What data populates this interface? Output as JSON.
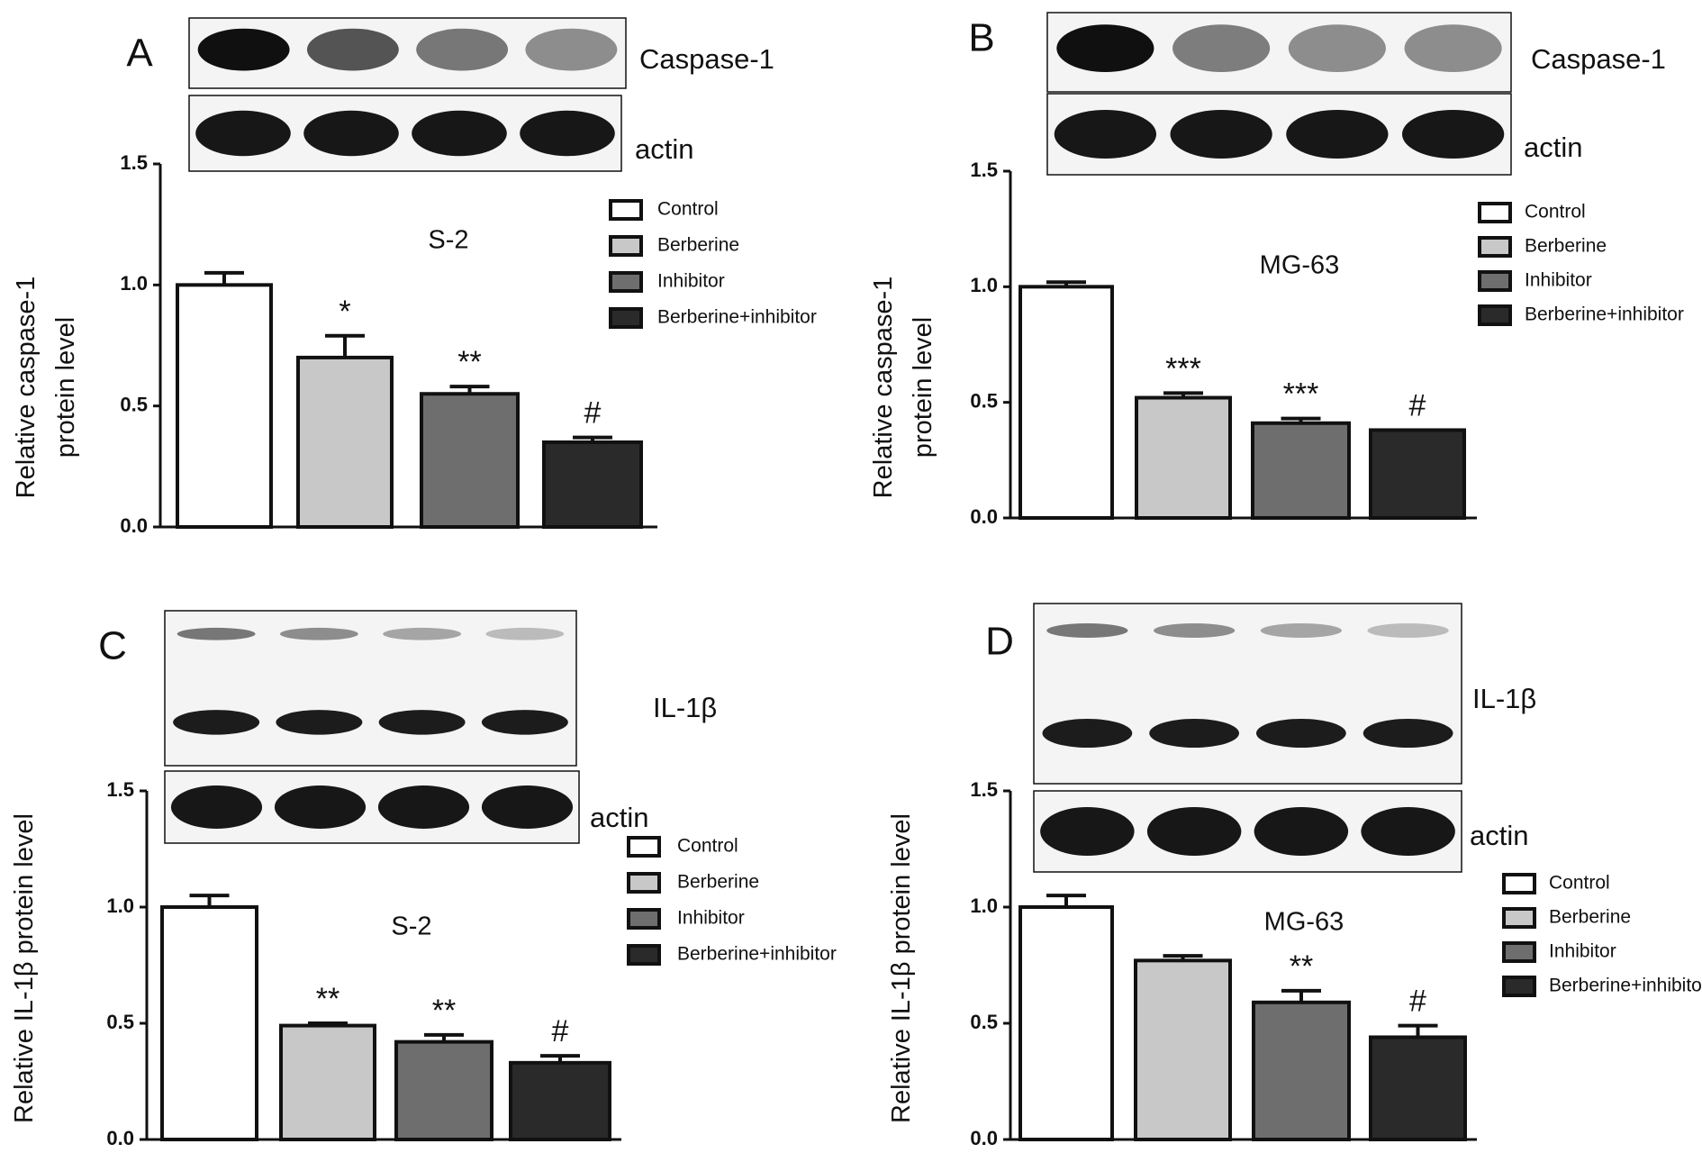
{
  "legend": [
    "Control",
    "Berberine",
    "Inhibitor",
    "Berberine+inhibitor"
  ],
  "colors": {
    "control": "#ffffff",
    "berberine": "#c8c8c8",
    "inhibitor": "#6e6e6e",
    "combo": "#2a2a2a",
    "axis": "#111111",
    "band": "#101010"
  },
  "chart_data": [
    {
      "panel": "A",
      "type": "bar",
      "title": "S-2",
      "ylabel": "Relative caspase-1 protein level",
      "ylim": [
        0,
        1.5
      ],
      "yticks": [
        "0.0",
        "0.5",
        "1.0",
        "1.5"
      ],
      "categories": [
        "Control",
        "Berberine",
        "Inhibitor",
        "Berberine+inhibitor"
      ],
      "values": [
        1.0,
        0.7,
        0.55,
        0.35
      ],
      "errors": [
        0.05,
        0.09,
        0.03,
        0.02
      ],
      "significance": [
        "",
        "*",
        "**",
        "#"
      ],
      "blot_labels": [
        "Caspase-1",
        "actin"
      ]
    },
    {
      "panel": "B",
      "type": "bar",
      "title": "MG-63",
      "ylabel": "Relative caspase-1 protein level",
      "ylim": [
        0,
        1.5
      ],
      "yticks": [
        "0.0",
        "0.5",
        "1.0",
        "1.5"
      ],
      "categories": [
        "Control",
        "Berberine",
        "Inhibitor",
        "Berberine+inhibitor"
      ],
      "values": [
        1.0,
        0.52,
        0.41,
        0.38
      ],
      "errors": [
        0.02,
        0.02,
        0.02,
        0.0
      ],
      "significance": [
        "",
        "***",
        "***",
        "#"
      ],
      "blot_labels": [
        "Caspase-1",
        "actin"
      ]
    },
    {
      "panel": "C",
      "type": "bar",
      "title": "S-2",
      "ylabel": "Relative IL-1β protein level",
      "ylim": [
        0,
        1.5
      ],
      "yticks": [
        "0.0",
        "0.5",
        "1.0",
        "1.5"
      ],
      "categories": [
        "Control",
        "Berberine",
        "Inhibitor",
        "Berberine+inhibitor"
      ],
      "values": [
        1.0,
        0.49,
        0.42,
        0.33
      ],
      "errors": [
        0.05,
        0.01,
        0.03,
        0.03
      ],
      "significance": [
        "",
        "**",
        "**",
        "#"
      ],
      "blot_labels": [
        "IL-1β",
        "actin"
      ]
    },
    {
      "panel": "D",
      "type": "bar",
      "title": "MG-63",
      "ylabel": "Relative IL-1β protein level",
      "ylim": [
        0,
        1.5
      ],
      "yticks": [
        "0.0",
        "0.5",
        "1.0",
        "1.5"
      ],
      "categories": [
        "Control",
        "Berberine",
        "Inhibitor",
        "Berberine+inhibitor"
      ],
      "values": [
        1.0,
        0.77,
        0.59,
        0.44
      ],
      "errors": [
        0.05,
        0.02,
        0.05,
        0.05
      ],
      "significance": [
        "",
        "",
        "**",
        "#"
      ],
      "blot_labels": [
        "IL-1β",
        "actin"
      ]
    }
  ]
}
